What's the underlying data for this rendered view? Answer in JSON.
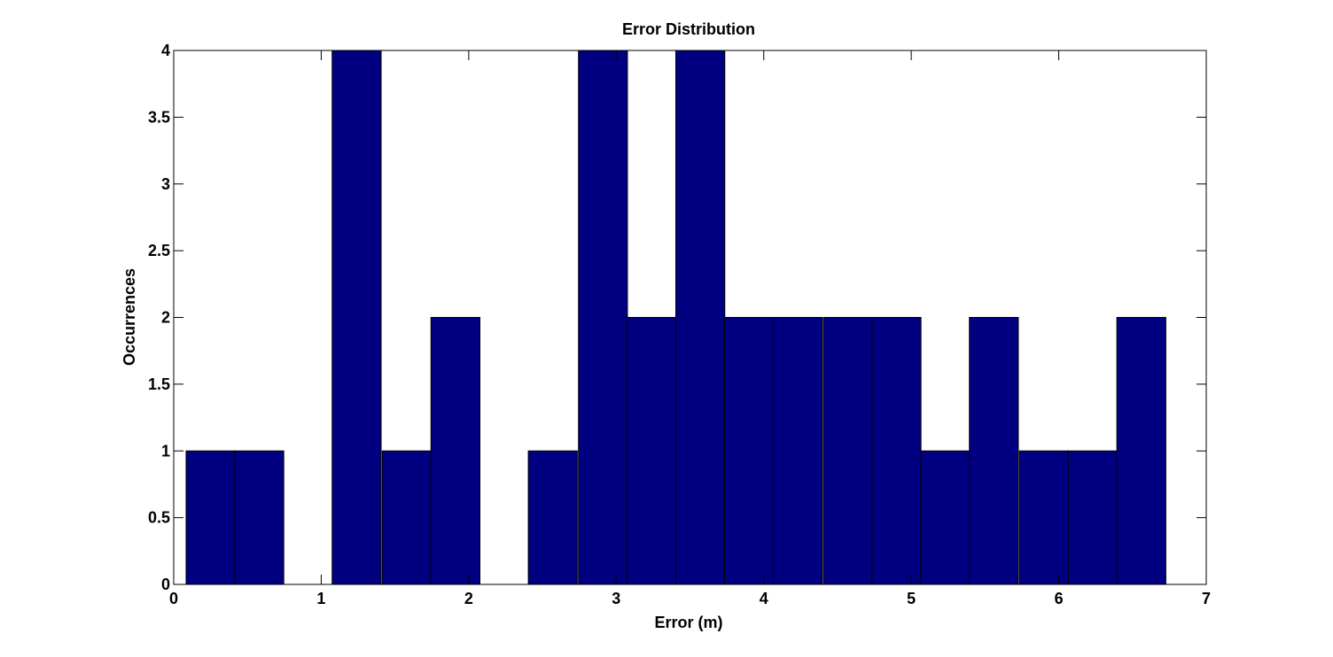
{
  "chart_data": {
    "type": "bar",
    "title": "Error Distribution",
    "xlabel": "Error (m)",
    "ylabel": "Occurrences",
    "xlim": [
      0,
      7
    ],
    "ylim": [
      0,
      4
    ],
    "x_ticks": [
      0,
      1,
      2,
      3,
      4,
      5,
      6,
      7
    ],
    "y_ticks": [
      0,
      0.5,
      1,
      1.5,
      2,
      2.5,
      3,
      3.5,
      4
    ],
    "bin_width": 0.332,
    "bin_centers": [
      0.25,
      0.58,
      0.91,
      1.24,
      1.58,
      1.91,
      2.24,
      2.57,
      2.91,
      3.24,
      3.57,
      3.9,
      4.23,
      4.57,
      4.9,
      5.23,
      5.56,
      5.9,
      6.23,
      6.56
    ],
    "values": [
      1,
      1,
      0,
      4,
      1,
      2,
      0,
      1,
      4,
      2,
      4,
      2,
      2,
      2,
      2,
      1,
      2,
      1,
      1,
      2
    ],
    "bar_color": "#000080",
    "edge_color": "#000000",
    "grid": false
  }
}
